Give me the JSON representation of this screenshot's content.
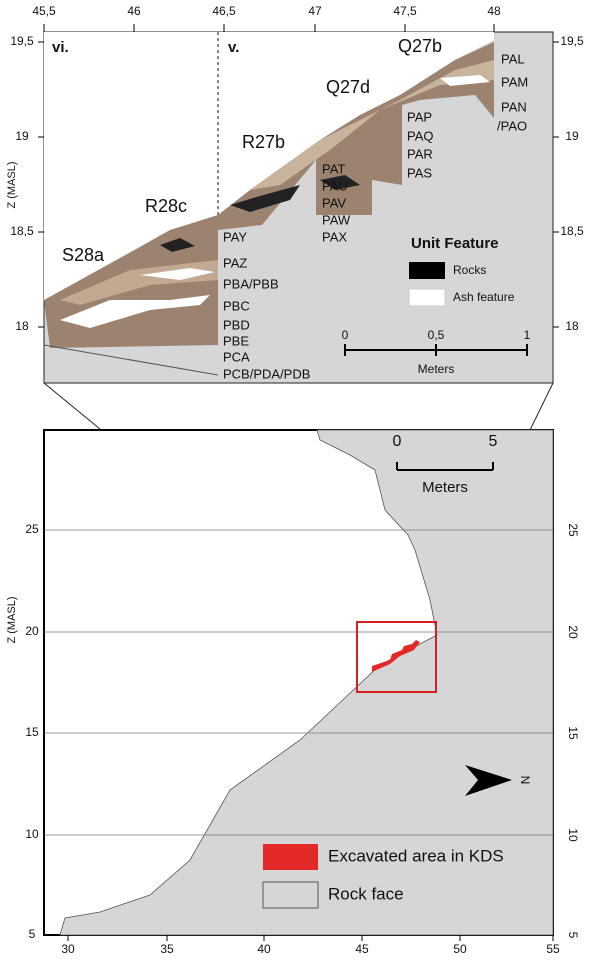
{
  "section": {
    "x_ticks": [
      "45,5",
      "46",
      "46,5",
      "47",
      "47,5",
      "48"
    ],
    "z_ticks": [
      "19,5",
      "19",
      "18,5",
      "18"
    ],
    "z_axis_label": "Z (MASL)",
    "zones": [
      "vi.",
      "v."
    ],
    "squares": [
      "S28a",
      "R28c",
      "R27b",
      "Q27d",
      "Q27b"
    ],
    "units": [
      "PAL",
      "PAM",
      "PAN",
      "/PAO",
      "PAP",
      "PAQ",
      "PAR",
      "PAS",
      "PAT",
      "PAU",
      "PAV",
      "PAW",
      "PAX",
      "PAY",
      "PAZ",
      "PBA/PBB",
      "PBC",
      "PBD",
      "PBE",
      "PCA",
      "PCB/PDA/PDB"
    ],
    "legend": {
      "title": "Unit Feature",
      "items": [
        "Rocks",
        "Ash feature"
      ]
    },
    "scale": {
      "ticks": [
        "0",
        "0,5",
        "1"
      ],
      "unit": "Meters"
    }
  },
  "map": {
    "x_ticks": [
      "30",
      "35",
      "40",
      "45",
      "50",
      "55"
    ],
    "z_ticks": [
      "25",
      "20",
      "15",
      "10",
      "5"
    ],
    "z_axis_label": "Z (MASL)",
    "scale": {
      "ticks": [
        "0",
        "5"
      ],
      "unit": "Meters"
    },
    "north": "N",
    "legend": [
      "Excavated area in KDS",
      "Rock face"
    ]
  }
}
